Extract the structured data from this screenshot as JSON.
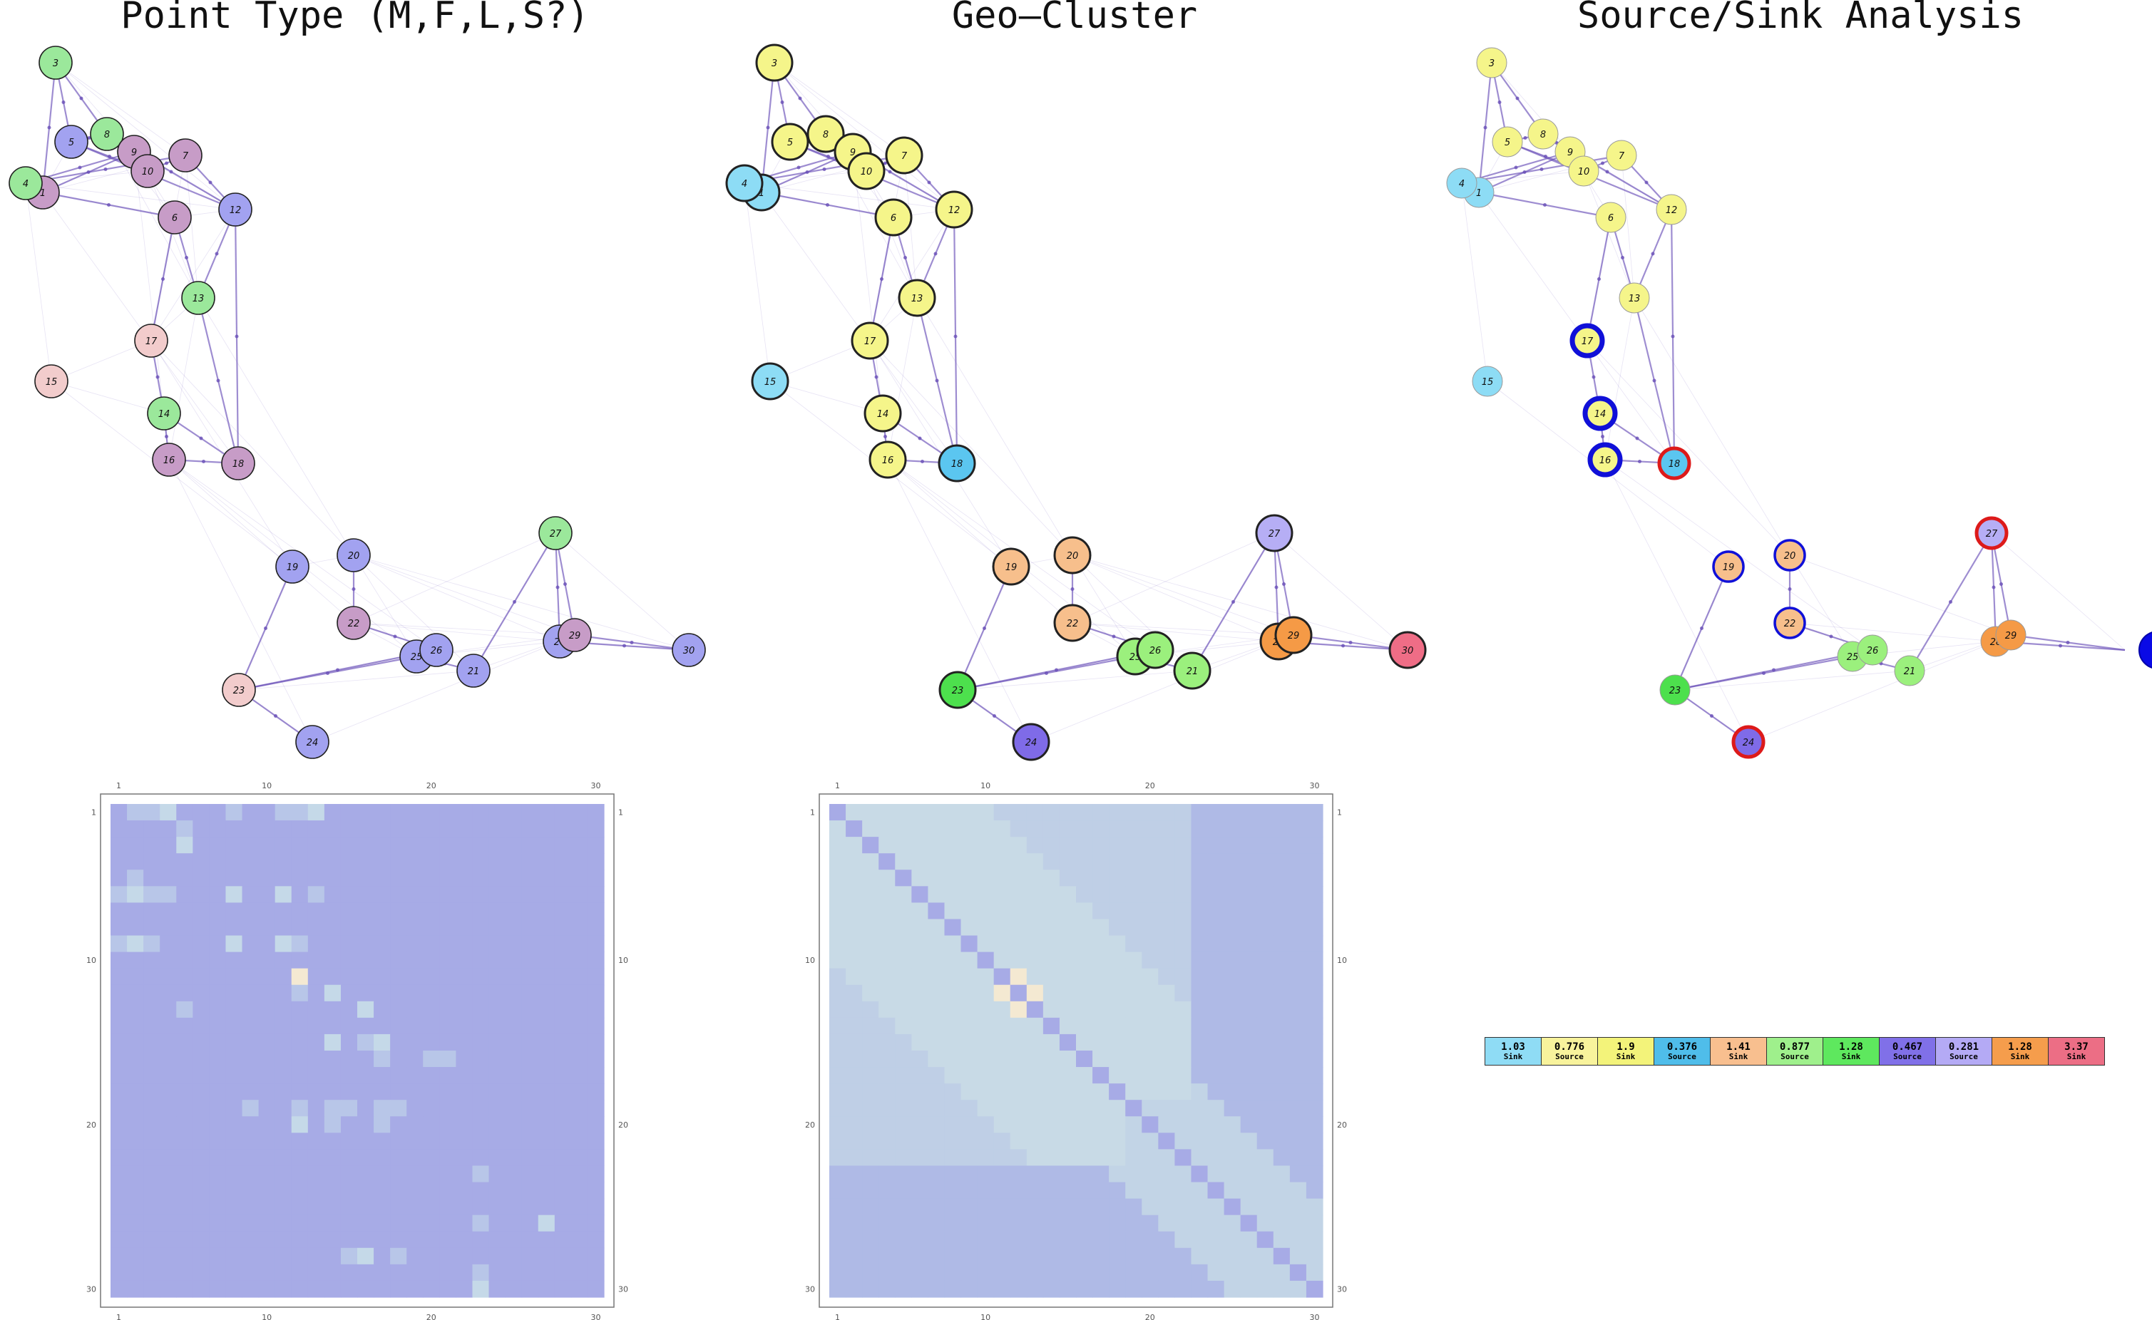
{
  "titles": [
    "Point Type (M,F,L,S?)",
    "Geo–Cluster",
    "Source/Sink Analysis"
  ],
  "nodes": [
    {
      "id": "1",
      "p": "#c79cc7",
      "c": "#8ddcf5"
    },
    {
      "id": "3",
      "p": "#9be89b",
      "c": "#f5f58a"
    },
    {
      "id": "4",
      "p": "#9be89b",
      "c": "#8ddcf5"
    },
    {
      "id": "5",
      "p": "#a2a2f0",
      "c": "#f5f58a"
    },
    {
      "id": "6",
      "p": "#c79cc7",
      "c": "#f5f58a"
    },
    {
      "id": "7",
      "p": "#c79cc7",
      "c": "#f5f58a"
    },
    {
      "id": "8",
      "p": "#9be89b",
      "c": "#f5f58a"
    },
    {
      "id": "9",
      "p": "#c79cc7",
      "c": "#f5f58a"
    },
    {
      "id": "10",
      "p": "#c79cc7",
      "c": "#f5f58a"
    },
    {
      "id": "12",
      "p": "#a2a2f0",
      "c": "#f5f58a"
    },
    {
      "id": "13",
      "p": "#9be89b",
      "c": "#f5f58a"
    },
    {
      "id": "14",
      "p": "#9be89b",
      "c": "#f5f58a"
    },
    {
      "id": "15",
      "p": "#f2cccc",
      "c": "#8ddcf5"
    },
    {
      "id": "16",
      "p": "#c79cc7",
      "c": "#f5f58a"
    },
    {
      "id": "17",
      "p": "#f2cccc",
      "c": "#f5f58a"
    },
    {
      "id": "18",
      "p": "#c79cc7",
      "c": "#5bc6f0"
    },
    {
      "id": "19",
      "p": "#a2a2f0",
      "c": "#f7bf8c"
    },
    {
      "id": "20",
      "p": "#a2a2f0",
      "c": "#f7bf8c"
    },
    {
      "id": "21",
      "p": "#a2a2f0",
      "c": "#9bf07d"
    },
    {
      "id": "22",
      "p": "#c79cc7",
      "c": "#f7bf8c"
    },
    {
      "id": "23",
      "p": "#f2cccc",
      "c": "#4de04d"
    },
    {
      "id": "24",
      "p": "#a2a2f0",
      "c": "#7f6be8"
    },
    {
      "id": "25",
      "p": "#a2a2f0",
      "c": "#9bf07d"
    },
    {
      "id": "26",
      "p": "#a2a2f0",
      "c": "#9bf07d"
    },
    {
      "id": "27",
      "p": "#9be89b",
      "c": "#b6aef5"
    },
    {
      "id": "28",
      "p": "#a2a2f0",
      "c": "#f59a46"
    },
    {
      "id": "29",
      "p": "#c79cc7",
      "c": "#f59a46"
    },
    {
      "id": "30",
      "p": "#a2a2f0",
      "c": "#ef6d86"
    }
  ],
  "matrix_ticks": {
    "top": [
      "1",
      "10",
      "20",
      "30"
    ],
    "left": [
      "1",
      "10",
      "20",
      "30"
    ],
    "right": [
      "1",
      "10",
      "20",
      "30"
    ],
    "bottom": [
      "1",
      "10",
      "20",
      "30"
    ]
  },
  "legend": [
    {
      "value": "1.03",
      "label": "Sink",
      "color": "#8fdcf5"
    },
    {
      "value": "0.776",
      "label": "Source",
      "color": "#f8f39c"
    },
    {
      "value": "1.9",
      "label": "Sink",
      "color": "#f3f37a"
    },
    {
      "value": "0.376",
      "label": "Source",
      "color": "#4fbdea"
    },
    {
      "value": "1.41",
      "label": "Sink",
      "color": "#f8bf8f"
    },
    {
      "value": "0.877",
      "label": "Source",
      "color": "#9ff08c"
    },
    {
      "value": "1.28",
      "label": "Sink",
      "color": "#5ee85e"
    },
    {
      "value": "0.467",
      "label": "Source",
      "color": "#8070e8"
    },
    {
      "value": "0.281",
      "label": "Source",
      "color": "#b4aaf5"
    },
    {
      "value": "1.28",
      "label": "Sink",
      "color": "#f59d4c"
    },
    {
      "value": "3.37",
      "label": "Sink",
      "color": "#ec6e85"
    }
  ],
  "colors": {
    "edge": "#6a50b8",
    "matrix_base": "#a7abe6",
    "matrix_light": "#c5d9e8",
    "matrix_warm": "#f4e9d2",
    "ring_blue": "#1010d8",
    "ring_red": "#dd1a1a"
  }
}
